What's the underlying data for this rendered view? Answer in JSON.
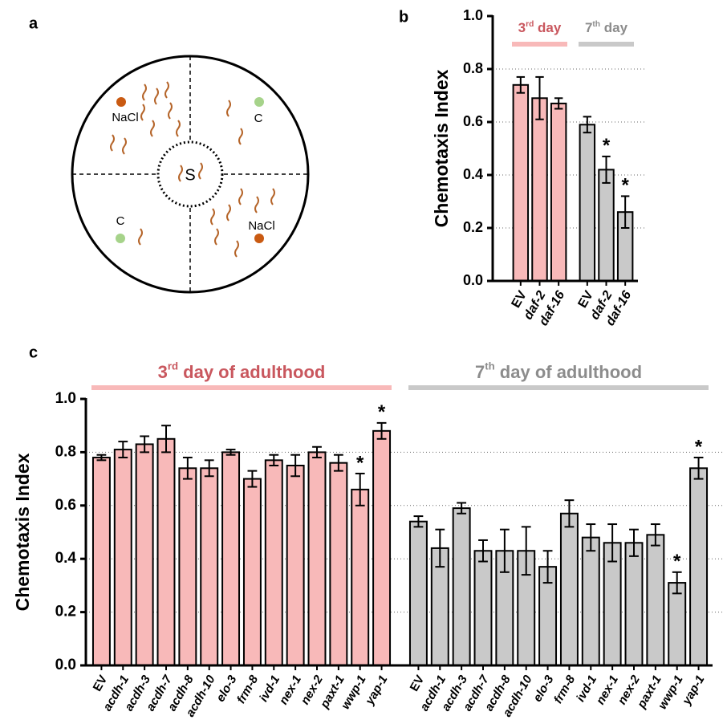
{
  "panel_labels": [
    "a",
    "b",
    "c"
  ],
  "diagram": {
    "center_label": "S",
    "labels": [
      "NaCl",
      "C",
      "C",
      "NaCl"
    ]
  },
  "chart_data": [
    {
      "type": "bar",
      "y_label": "Chemotaxis Index",
      "categories": [
        "EV",
        "daf-2",
        "daf-16"
      ],
      "ylim": [
        0,
        1
      ],
      "yticks": [
        {
          "value": 0,
          "label": "0.0"
        },
        0.2,
        0.4,
        0.6,
        0.8,
        {
          "value": 1,
          "label": "1.0"
        }
      ],
      "grid": true,
      "series": [
        {
          "name": "3rd day",
          "color": "#f8b9b9",
          "name_color": "#c9575e",
          "values": [
            0.74,
            0.69,
            0.67
          ],
          "errors": [
            0.03,
            0.08,
            0.02
          ],
          "annotations": [
            null,
            null,
            null
          ]
        },
        {
          "name": "7th day",
          "color": "#c9c9c9",
          "name_color": "#8c8c8c",
          "values": [
            0.59,
            0.42,
            0.26
          ],
          "errors": [
            0.03,
            0.05,
            0.06
          ],
          "annotations": [
            null,
            "*",
            "*"
          ]
        }
      ]
    },
    {
      "type": "bar",
      "y_label": "Chemotaxis Index",
      "categories": [
        "EV",
        "acdh-1",
        "acdh-3",
        "acdh-7",
        "acdh-8",
        "acdh-10",
        "elo-3",
        "frm-8",
        "ivd-1",
        "nex-1",
        "nex-2",
        "paxt-1",
        "wwp-1",
        "yap-1"
      ],
      "ylim": [
        0,
        1
      ],
      "yticks": [
        {
          "value": 0,
          "label": "0.0"
        },
        0.2,
        0.4,
        0.6,
        0.8,
        {
          "value": 1,
          "label": "1.0"
        }
      ],
      "grid": true,
      "series": [
        {
          "name": "3rd day of adulthood",
          "color": "#f8b9b9",
          "name_color": "#c9575e",
          "values": [
            0.78,
            0.81,
            0.83,
            0.85,
            0.74,
            0.74,
            0.8,
            0.7,
            0.77,
            0.75,
            0.8,
            0.76,
            0.66,
            0.88
          ],
          "errors": [
            0.01,
            0.03,
            0.03,
            0.05,
            0.04,
            0.03,
            0.01,
            0.03,
            0.02,
            0.04,
            0.02,
            0.03,
            0.06,
            0.03
          ],
          "annotations": [
            null,
            null,
            null,
            null,
            null,
            null,
            null,
            null,
            null,
            null,
            null,
            null,
            "*",
            "*"
          ]
        },
        {
          "name": "7th day of adulthood",
          "color": "#c9c9c9",
          "name_color": "#8c8c8c",
          "values": [
            0.54,
            0.44,
            0.59,
            0.43,
            0.43,
            0.43,
            0.37,
            0.57,
            0.48,
            0.46,
            0.46,
            0.49,
            0.31,
            0.74
          ],
          "errors": [
            0.02,
            0.07,
            0.02,
            0.04,
            0.08,
            0.09,
            0.06,
            0.05,
            0.05,
            0.07,
            0.05,
            0.04,
            0.04,
            0.04
          ],
          "annotations": [
            null,
            null,
            null,
            null,
            null,
            null,
            null,
            null,
            null,
            null,
            null,
            null,
            "*",
            "*"
          ]
        }
      ]
    }
  ]
}
